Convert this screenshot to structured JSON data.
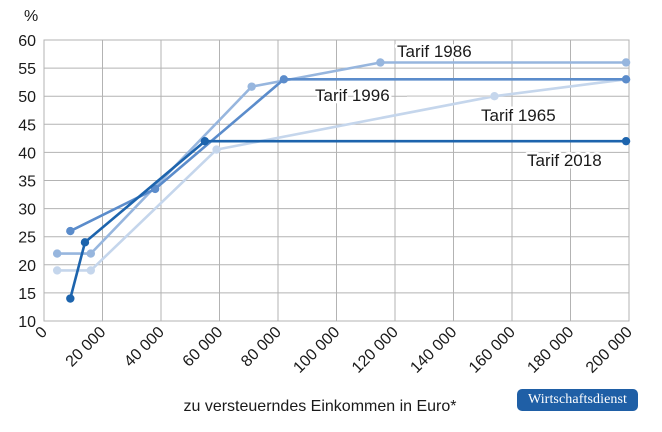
{
  "chart_data": {
    "type": "line",
    "ylabel": "%",
    "xlabel": "zu versteuerndes Einkommen in Euro*",
    "ylim": [
      10,
      60
    ],
    "xlim": [
      0,
      200000
    ],
    "yticks": [
      "10",
      "15",
      "20",
      "25",
      "30",
      "35",
      "40",
      "45",
      "50",
      "55",
      "60"
    ],
    "xticks": [
      "0",
      "20 000",
      "40 000",
      "60 000",
      "80 000",
      "100 000",
      "120 000",
      "140 000",
      "160 000",
      "180 000",
      "200 000"
    ],
    "grid": true,
    "series": [
      {
        "name": "Tarif 1965",
        "color": "#c5d6ec",
        "points": [
          [
            4500,
            19
          ],
          [
            16000,
            19
          ],
          [
            59000,
            40.5
          ],
          [
            154000,
            50
          ],
          [
            199000,
            53
          ]
        ]
      },
      {
        "name": "Tarif 1986",
        "color": "#97b6de",
        "points": [
          [
            4500,
            22
          ],
          [
            16000,
            22
          ],
          [
            71000,
            51.7
          ],
          [
            115000,
            56
          ],
          [
            199000,
            56
          ]
        ]
      },
      {
        "name": "Tarif 1996",
        "color": "#5b8ccb",
        "points": [
          [
            9000,
            26
          ],
          [
            38000,
            33.5
          ],
          [
            82000,
            53
          ],
          [
            199000,
            53
          ]
        ]
      },
      {
        "name": "Tarif 2018",
        "color": "#1d64ad",
        "points": [
          [
            9000,
            14
          ],
          [
            14000,
            24
          ],
          [
            55000,
            42
          ],
          [
            199000,
            42
          ]
        ]
      }
    ],
    "labels": [
      {
        "series": "Tarif 1986",
        "text": "Tarif 1986"
      },
      {
        "series": "Tarif 1996",
        "text": "Tarif 1996"
      },
      {
        "series": "Tarif 1965",
        "text": "Tarif 1965"
      },
      {
        "series": "Tarif 2018",
        "text": "Tarif 2018"
      }
    ]
  },
  "badge": "Wirtschaftsdienst"
}
